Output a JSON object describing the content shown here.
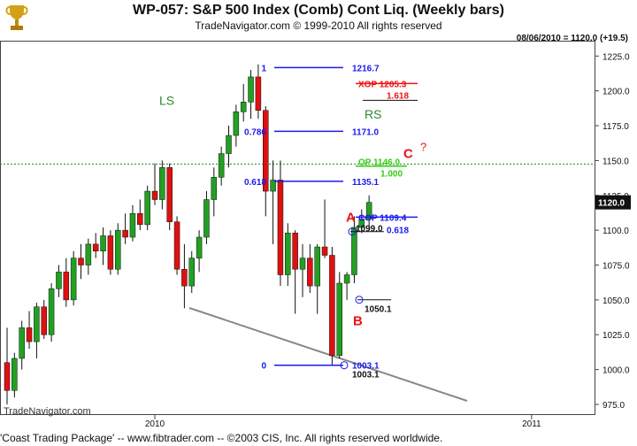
{
  "header": {
    "title": "WP-057:  S&P 500 Index (Comb) Cont Liq.  (Weekly bars)",
    "subtitle": "TradeNavigator.com © 1999-2010 All rights reserved",
    "date_info": "08/06/2010 = 1120.0 (+19.5)"
  },
  "watermark": "TradeNavigator.com",
  "footer": "'Coast Trading Package' -- www.fibtrader.com -- ©2003 CIS, Inc. All rights reserved worldwide.",
  "colors": {
    "up": "#22a022",
    "down": "#dd1111",
    "fib": "#1a1aee",
    "xop": "#ee1111",
    "op": "#33cc11",
    "trend": "#888888"
  },
  "chart_data": {
    "type": "candlestick",
    "title": "WP-057:  S&P 500 Index (Comb) Cont Liq.  (Weekly bars)",
    "ylim": [
      968,
      1236
    ],
    "y_ticks": [
      "1225.0",
      "1200.0",
      "1175.0",
      "1150.0",
      "1125.0",
      "1100.0",
      "1075.0",
      "1050.0",
      "1025.0",
      "1000.0",
      "975.0"
    ],
    "x_ticks": [
      "2010",
      "2011"
    ],
    "last_price_label": "1120.0",
    "candles": [
      {
        "o": 1005,
        "h": 1030,
        "l": 975,
        "c": 985
      },
      {
        "o": 985,
        "h": 1012,
        "l": 980,
        "c": 1008
      },
      {
        "o": 1008,
        "h": 1035,
        "l": 1000,
        "c": 1030
      },
      {
        "o": 1030,
        "h": 1042,
        "l": 1015,
        "c": 1020
      },
      {
        "o": 1020,
        "h": 1048,
        "l": 1008,
        "c": 1045
      },
      {
        "o": 1045,
        "h": 1050,
        "l": 1022,
        "c": 1025
      },
      {
        "o": 1025,
        "h": 1062,
        "l": 1020,
        "c": 1058
      },
      {
        "o": 1058,
        "h": 1075,
        "l": 1052,
        "c": 1070
      },
      {
        "o": 1070,
        "h": 1080,
        "l": 1045,
        "c": 1050
      },
      {
        "o": 1050,
        "h": 1085,
        "l": 1046,
        "c": 1080
      },
      {
        "o": 1080,
        "h": 1090,
        "l": 1065,
        "c": 1075
      },
      {
        "o": 1075,
        "h": 1094,
        "l": 1068,
        "c": 1090
      },
      {
        "o": 1090,
        "h": 1098,
        "l": 1080,
        "c": 1085
      },
      {
        "o": 1085,
        "h": 1102,
        "l": 1075,
        "c": 1096
      },
      {
        "o": 1096,
        "h": 1100,
        "l": 1068,
        "c": 1072
      },
      {
        "o": 1072,
        "h": 1105,
        "l": 1068,
        "c": 1100
      },
      {
        "o": 1100,
        "h": 1112,
        "l": 1090,
        "c": 1095
      },
      {
        "o": 1095,
        "h": 1118,
        "l": 1092,
        "c": 1112
      },
      {
        "o": 1112,
        "h": 1122,
        "l": 1100,
        "c": 1104
      },
      {
        "o": 1104,
        "h": 1132,
        "l": 1100,
        "c": 1128
      },
      {
        "o": 1128,
        "h": 1148,
        "l": 1118,
        "c": 1122
      },
      {
        "o": 1122,
        "h": 1150,
        "l": 1115,
        "c": 1145
      },
      {
        "o": 1145,
        "h": 1148,
        "l": 1100,
        "c": 1106
      },
      {
        "o": 1106,
        "h": 1110,
        "l": 1068,
        "c": 1072
      },
      {
        "o": 1072,
        "h": 1090,
        "l": 1044,
        "c": 1060
      },
      {
        "o": 1060,
        "h": 1085,
        "l": 1055,
        "c": 1080
      },
      {
        "o": 1080,
        "h": 1100,
        "l": 1070,
        "c": 1095
      },
      {
        "o": 1095,
        "h": 1128,
        "l": 1090,
        "c": 1122
      },
      {
        "o": 1122,
        "h": 1145,
        "l": 1110,
        "c": 1138
      },
      {
        "o": 1138,
        "h": 1160,
        "l": 1132,
        "c": 1155
      },
      {
        "o": 1155,
        "h": 1175,
        "l": 1145,
        "c": 1168
      },
      {
        "o": 1168,
        "h": 1190,
        "l": 1160,
        "c": 1185
      },
      {
        "o": 1185,
        "h": 1205,
        "l": 1178,
        "c": 1192
      },
      {
        "o": 1192,
        "h": 1215,
        "l": 1180,
        "c": 1210
      },
      {
        "o": 1210,
        "h": 1219,
        "l": 1180,
        "c": 1186
      },
      {
        "o": 1186,
        "h": 1189,
        "l": 1110,
        "c": 1128
      },
      {
        "o": 1128,
        "h": 1150,
        "l": 1090,
        "c": 1136
      },
      {
        "o": 1136,
        "h": 1150,
        "l": 1060,
        "c": 1068
      },
      {
        "o": 1068,
        "h": 1105,
        "l": 1060,
        "c": 1098
      },
      {
        "o": 1098,
        "h": 1100,
        "l": 1040,
        "c": 1072
      },
      {
        "o": 1072,
        "h": 1090,
        "l": 1052,
        "c": 1080
      },
      {
        "o": 1080,
        "h": 1090,
        "l": 1055,
        "c": 1060
      },
      {
        "o": 1060,
        "h": 1090,
        "l": 1040,
        "c": 1088
      },
      {
        "o": 1088,
        "h": 1122,
        "l": 1080,
        "c": 1082
      },
      {
        "o": 1082,
        "h": 1088,
        "l": 1003,
        "c": 1010
      },
      {
        "o": 1010,
        "h": 1070,
        "l": 1008,
        "c": 1062
      },
      {
        "o": 1062,
        "h": 1070,
        "l": 1050,
        "c": 1068
      },
      {
        "o": 1068,
        "h": 1110,
        "l": 1062,
        "c": 1102
      },
      {
        "o": 1102,
        "h": 1115,
        "l": 1098,
        "c": 1108
      },
      {
        "o": 1108,
        "h": 1125,
        "l": 1100,
        "c": 1120
      }
    ],
    "fib_levels": [
      {
        "price": 1216.7,
        "ratio": "1",
        "value_label": "1216.7"
      },
      {
        "price": 1171.0,
        "ratio": "0.786",
        "value_label": "1171.0"
      },
      {
        "price": 1135.1,
        "ratio": "0.618",
        "value_label": "1135.1"
      },
      {
        "price": 1003.1,
        "ratio": "0",
        "value_label": "1003.1"
      }
    ],
    "annotations": {
      "xop_label": "XOP 1205.3",
      "xop_ratio": "1.618",
      "op_label": "OP 1146.0",
      "op_ratio": "1.000",
      "cop_label": "COP 1109.4",
      "cop_ratio": "0.618",
      "c_label": "C",
      "question": "?",
      "a_label": "A",
      "b_label": "B",
      "ls_label": "LS",
      "rs_label": "RS",
      "point_a_value": "1099.0",
      "point_b_value": "1050.1",
      "low_value": "1003.1"
    },
    "neckline_price": 1147.5
  }
}
